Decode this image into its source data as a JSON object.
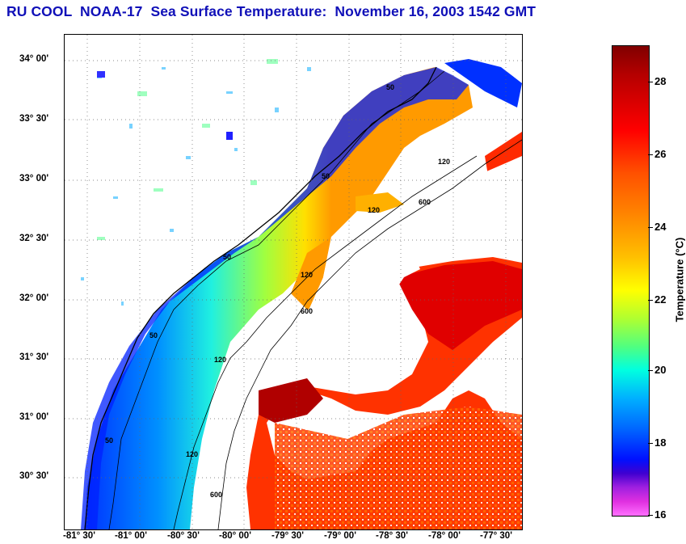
{
  "title": "RU COOL  NOAA-17  Sea Surface Temperature:  November 16, 2003 1542 GMT",
  "y_axis_labels": [
    "34° 00'",
    "33° 30'",
    "33° 00'",
    "32° 30'",
    "32° 00'",
    "31° 30'",
    "31° 00'",
    "30° 30'"
  ],
  "x_axis_labels": [
    "-81° 30'",
    "-81° 00'",
    "-80° 30'",
    "-80° 00'",
    "-79° 30'",
    "-79° 00'",
    "-78° 30'",
    "-78° 00'",
    "-77° 30'"
  ],
  "colorbar": {
    "title": "Temperature (°C)",
    "tick_labels": [
      "28",
      "26",
      "24",
      "22",
      "20",
      "18",
      "16"
    ],
    "range": [
      16,
      29
    ]
  },
  "contour_labels": {
    "c50": "50",
    "c120": "120",
    "c600": "600"
  },
  "colors": {
    "title": "#1010b8",
    "land": "#ffffff",
    "coast": "#000000"
  }
}
